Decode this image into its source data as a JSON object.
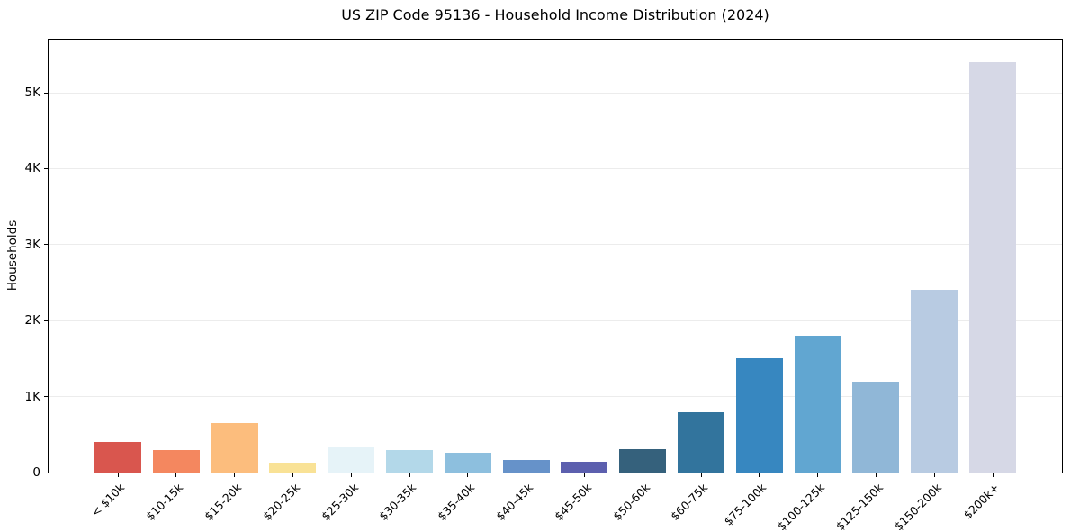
{
  "chart_data": {
    "type": "bar",
    "title": "US ZIP Code 95136 - Household Income Distribution (2024)",
    "xlabel": "",
    "ylabel": "Households",
    "categories": [
      "< $10k",
      "$10-15k",
      "$15-20k",
      "$20-25k",
      "$25-30k",
      "$30-35k",
      "$35-40k",
      "$40-45k",
      "$45-50k",
      "$50-60k",
      "$60-75k",
      "$75-100k",
      "$100-125k",
      "$125-150k",
      "$150-200k",
      "$200k+"
    ],
    "values": [
      400,
      300,
      650,
      130,
      330,
      300,
      265,
      165,
      145,
      310,
      800,
      1500,
      1800,
      1200,
      2400,
      5400
    ],
    "bar_colors": [
      "#d9564e",
      "#f4875f",
      "#fcbd7d",
      "#f9e296",
      "#e6f3f8",
      "#b3d8e9",
      "#8dbfde",
      "#6692c9",
      "#5c5fae",
      "#35617c",
      "#32749d",
      "#3787c0",
      "#61a6d1",
      "#90b7d7",
      "#b8cbe2",
      "#d6d8e6"
    ],
    "ylim": [
      0,
      5700
    ],
    "yticks": [
      {
        "value": 0,
        "label": "0"
      },
      {
        "value": 1000,
        "label": "1K"
      },
      {
        "value": 2000,
        "label": "2K"
      },
      {
        "value": 3000,
        "label": "3K"
      },
      {
        "value": 4000,
        "label": "4K"
      },
      {
        "value": 5000,
        "label": "5K"
      }
    ],
    "grid": "horizontal-gridlines-on",
    "legend": "none",
    "x_tick_rotation_deg": 45,
    "colors": {
      "background": "#ffffff",
      "gridline": "#ececec",
      "spine": "#000000",
      "text": "#000000"
    }
  }
}
